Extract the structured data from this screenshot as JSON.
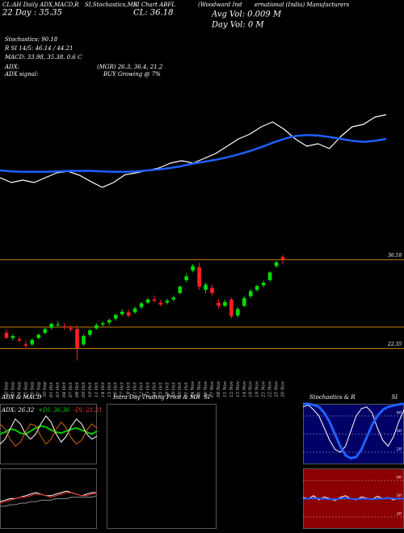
{
  "header": {
    "t1": "CL:AH Daily ADX,MACD,R",
    "t2": "SI,Stochastics,MR",
    "t3": "SI Chart ABFL",
    "t4": "(Woodward Ind",
    "t5": "ernational (India) Manufacturers",
    "day": "22 Day : 35.35",
    "close": "CL: 36.18",
    "avg_vol": "Avg Vol: 0.009 M",
    "day_vol": "Day Vol: 0  M",
    "stoch": "Stochastics: 90.18",
    "rsi": "R SI 14/5: 46.14 / 44.21",
    "macd": "MACD: 33.98, 35.38, 0.6 C",
    "adx": "ADX:",
    "adx_vals": "(MGR) 26.3, 36.4, 21.2",
    "adx_signal": "ADX  signal:",
    "adx_signal_val": "BUY Growing @ 7%"
  },
  "chart_data": [
    {
      "type": "line",
      "ylim": [
        20,
        40
      ],
      "series": [
        {
          "color": "#ffffff",
          "width": 1.2,
          "values": [
            25,
            24,
            24.5,
            24,
            25,
            26,
            26.3,
            25.5,
            24.2,
            23,
            24,
            25.6,
            26,
            26.5,
            27,
            28,
            28.5,
            28,
            29,
            30,
            31.5,
            33,
            34,
            35.5,
            36.5,
            35,
            33,
            31.5,
            32,
            31,
            33.5,
            35.5,
            36,
            37.5,
            38
          ]
        },
        {
          "color": "#1f5fff",
          "width": 2.5,
          "values": [
            26.5,
            26.3,
            26.2,
            26.2,
            26.2,
            26.3,
            26.4,
            26.4,
            26.4,
            26.3,
            26.2,
            26.2,
            26.3,
            26.5,
            26.7,
            27,
            27.4,
            27.9,
            28.3,
            28.7,
            29.2,
            29.8,
            30.5,
            31.3,
            32.2,
            33,
            33.6,
            33.8,
            33.7,
            33.4,
            33,
            32.6,
            32.4,
            32.6,
            33
          ]
        }
      ]
    },
    {
      "type": "candlestick",
      "ylim": [
        21.3,
        38.9
      ],
      "yticks": [
        36.18,
        22.35
      ],
      "level_lines": [
        25.7
      ],
      "up_color": "#00dd00",
      "down_color": "#ff2020",
      "line_color": "#c87800",
      "categories": [
        "20 Sep",
        "23 Sep",
        "24 Sep",
        "25 Sep",
        "26 Sep",
        "27 Sep",
        "30 Sep",
        "01 Oct",
        "03 Oct",
        "04 Oct",
        "07 Oct",
        "08 Oct",
        "09 Oct",
        "10 Oct",
        "11 Oct",
        "14 Oct",
        "15 Oct",
        "16 Oct",
        "17 Oct",
        "18 Oct",
        "21 Oct",
        "22 Oct",
        "23 Oct",
        "24 Oct",
        "25 Oct",
        "28 Oct",
        "29 Oct",
        "30 Oct",
        "31 Oct",
        "04 Nov",
        "05 Nov",
        "06 Nov",
        "07 Nov",
        "08 Nov",
        "11 Nov",
        "12 Nov",
        "13 Nov",
        "14 Nov",
        "18 Nov",
        "19 Nov",
        "21 Nov",
        "22 Nov",
        "25 Nov",
        "26 Nov"
      ],
      "open": [
        24.8,
        24.0,
        23.8,
        23.0,
        23.0,
        24.0,
        24.8,
        25.6,
        26.0,
        25.8,
        25.5,
        25.4,
        23.0,
        24.5,
        25.5,
        26.1,
        26.4,
        27.0,
        27.7,
        28.0,
        28.0,
        28.8,
        29.5,
        30.0,
        29.5,
        29.5,
        30.0,
        31.0,
        33.0,
        34.5,
        35.0,
        31.5,
        31.8,
        29.5,
        29.0,
        30.0,
        27.5,
        29.0,
        30.5,
        31.5,
        32.2,
        33.0,
        35.2,
        36.6
      ],
      "high": [
        25.3,
        24.6,
        24.2,
        23.5,
        23.9,
        24.7,
        25.6,
        26.4,
        26.6,
        26.3,
        25.9,
        25.9,
        24.6,
        25.4,
        26.3,
        26.6,
        27.0,
        27.8,
        28.5,
        28.4,
        28.9,
        29.6,
        30.3,
        30.6,
        30.0,
        30.1,
        30.6,
        32.2,
        34.0,
        35.5,
        35.7,
        32.6,
        32.3,
        30.0,
        30.0,
        30.3,
        28.8,
        30.5,
        31.6,
        32.3,
        32.9,
        34.4,
        36.0,
        36.9
      ],
      "low": [
        23.9,
        23.6,
        23.4,
        22.3,
        22.8,
        23.8,
        24.6,
        25.3,
        25.7,
        25.3,
        25.0,
        20.5,
        22.8,
        24.2,
        25.3,
        25.8,
        26.0,
        26.7,
        27.4,
        27.2,
        27.8,
        28.5,
        29.3,
        29.5,
        28.9,
        29.2,
        29.7,
        30.8,
        32.7,
        34.2,
        31.5,
        31.0,
        30.6,
        28.6,
        28.8,
        27.0,
        27.2,
        28.8,
        30.2,
        31.2,
        31.9,
        32.8,
        34.9,
        35.5
      ],
      "close": [
        24.0,
        24.3,
        23.6,
        22.8,
        23.7,
        24.5,
        25.4,
        26.2,
        26.1,
        25.7,
        25.3,
        22.4,
        24.3,
        25.2,
        26.0,
        26.3,
        26.8,
        27.6,
        28.1,
        27.5,
        28.6,
        29.4,
        30.0,
        29.8,
        29.2,
        29.8,
        30.3,
        32.0,
        33.6,
        35.2,
        32.0,
        32.3,
        31.0,
        29.0,
        29.6,
        27.4,
        28.5,
        30.2,
        31.3,
        32.1,
        32.6,
        34.2,
        35.8,
        36.18
      ]
    },
    {
      "type": "line",
      "title": "ADX  & MACD",
      "annotations": [
        {
          "text": "ADX: 26.32",
          "color": "#ffffff"
        },
        {
          "text": "+DI: 36.36",
          "color": "#00dd00"
        },
        {
          "text": "-DI: 21.21",
          "color": "#ff4040"
        }
      ],
      "ylim": [
        0,
        60
      ],
      "background": "#000000",
      "series": [
        {
          "color": "#00cc00",
          "width": 2,
          "values": [
            30,
            32,
            35,
            34,
            31,
            30,
            33,
            36,
            38,
            37,
            34,
            32,
            31,
            33,
            35,
            36,
            34,
            32,
            30,
            33
          ]
        },
        {
          "color": "#ffffff",
          "width": 1,
          "values": [
            20,
            25,
            35,
            45,
            40,
            30,
            25,
            30,
            40,
            48,
            42,
            30,
            22,
            28,
            38,
            45,
            40,
            30,
            25,
            28
          ]
        },
        {
          "color": "#cc6600",
          "width": 1,
          "values": [
            40,
            35,
            25,
            18,
            22,
            32,
            40,
            38,
            28,
            20,
            25,
            35,
            42,
            36,
            26,
            20,
            24,
            34,
            40,
            36
          ]
        }
      ]
    },
    {
      "type": "line",
      "ylim": [
        0,
        40
      ],
      "background": "#000000",
      "series": [
        {
          "color": "#ffffff",
          "width": 1,
          "values": [
            18,
            19,
            20,
            20,
            21,
            22,
            23,
            24,
            23,
            22,
            22,
            23,
            24,
            25,
            24,
            23,
            22,
            23,
            24,
            24
          ]
        },
        {
          "color": "#ff3030",
          "width": 1,
          "values": [
            17,
            18,
            19,
            20,
            21,
            21,
            22,
            23,
            23,
            22,
            21,
            22,
            23,
            24,
            24,
            23,
            22,
            22,
            23,
            24
          ]
        },
        {
          "color": "#888888",
          "width": 1,
          "values": [
            15,
            15,
            16,
            16,
            17,
            17,
            18,
            18,
            19,
            19,
            19,
            20,
            20,
            20,
            21,
            21,
            21,
            21,
            21,
            22
          ]
        }
      ]
    },
    {
      "type": "blank",
      "title": "Intra Day Trading Price  & MR",
      "title_suffix": "SI",
      "background": "#000000"
    },
    {
      "type": "line",
      "title": "Stochastics  & R",
      "title_suffix": "SI",
      "ylim": [
        0,
        100
      ],
      "yticks": [
        80,
        50,
        20
      ],
      "background": "#000066",
      "series": [
        {
          "color": "#ffffff",
          "width": 1,
          "values": [
            95,
            98,
            90,
            80,
            60,
            40,
            25,
            20,
            30,
            55,
            80,
            92,
            95,
            85,
            60,
            40,
            30,
            45,
            70,
            90
          ]
        },
        {
          "color": "#2060ff",
          "width": 3,
          "values": [
            100,
            100,
            98,
            95,
            85,
            70,
            50,
            30,
            15,
            10,
            12,
            25,
            45,
            65,
            80,
            90,
            95,
            97,
            99,
            100
          ]
        }
      ]
    },
    {
      "type": "line",
      "ylim": [
        0,
        100
      ],
      "yticks": [
        80,
        50,
        20
      ],
      "background": "#8b0000",
      "series": [
        {
          "color": "#ffffff",
          "width": 1,
          "values": [
            52,
            50,
            55,
            48,
            53,
            50,
            47,
            52,
            55,
            50,
            48,
            53,
            51,
            49,
            54,
            50,
            52,
            48,
            51,
            50
          ]
        },
        {
          "color": "#2060ff",
          "width": 2,
          "values": [
            50,
            50,
            51,
            50,
            50,
            49,
            49,
            50,
            51,
            50,
            49,
            50,
            50,
            49,
            50,
            50,
            51,
            50,
            50,
            50
          ]
        }
      ]
    }
  ]
}
